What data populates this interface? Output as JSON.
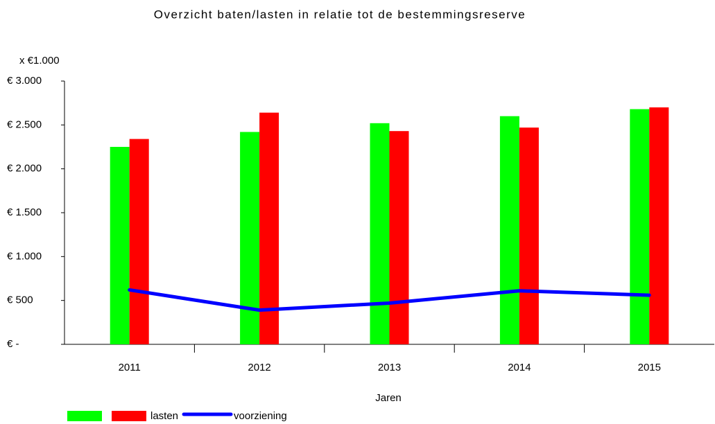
{
  "chart_data": {
    "type": "bar",
    "title": "Overzicht baten/lasten in relatie tot de bestemmingsreserve",
    "y_unit_label": "x €1.000",
    "x_label": "Jaren",
    "categories": [
      "2011",
      "2012",
      "2013",
      "2014",
      "2015"
    ],
    "series": [
      {
        "color": "#00ff00",
        "values": [
          2250,
          2420,
          2520,
          2600,
          2680
        ]
      },
      {
        "name": "lasten",
        "color": "#ff0000",
        "values": [
          2340,
          2640,
          2430,
          2470,
          2700
        ]
      },
      {
        "name": "voorziening",
        "type": "line",
        "color": "#0000ff",
        "values": [
          620,
          390,
          470,
          610,
          560
        ]
      }
    ],
    "ylim": [
      0,
      3000
    ],
    "yticks": [
      {
        "value": 0,
        "label": "€ -"
      },
      {
        "value": 500,
        "label": "€ 500"
      },
      {
        "value": 1000,
        "label": "€ 1.000"
      },
      {
        "value": 1500,
        "label": "€ 1.500"
      },
      {
        "value": 2000,
        "label": "€ 2.000"
      },
      {
        "value": 2500,
        "label": "€ 2.500"
      },
      {
        "value": 3000,
        "label": "€ 3.000"
      }
    ],
    "legend": "bottom-left"
  }
}
